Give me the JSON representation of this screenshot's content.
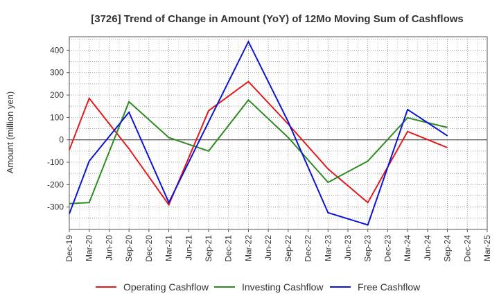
{
  "chart_data": {
    "type": "line",
    "title": "[3726]  Trend of Change in Amount (YoY) of 12Mo Moving Sum of Cashflows",
    "xlabel": "",
    "ylabel": "Amount (million yen)",
    "categories": [
      "Dec-19",
      "Mar-20",
      "Jun-20",
      "Sep-20",
      "Dec-20",
      "Mar-21",
      "Jun-21",
      "Sep-21",
      "Dec-21",
      "Mar-22",
      "Jun-22",
      "Sep-22",
      "Dec-22",
      "Mar-23",
      "Jun-23",
      "Sep-23",
      "Dec-23",
      "Mar-24",
      "Jun-24",
      "Sep-24",
      "Dec-24",
      "Mar-25"
    ],
    "ylim": [
      -400,
      460
    ],
    "yticks": [
      -300,
      -200,
      -100,
      0,
      100,
      200,
      300,
      400
    ],
    "grid": true,
    "legend_position": "bottom",
    "series": [
      {
        "name": "Operating Cashflow",
        "color": "#e31a1c",
        "values": [
          -45,
          185,
          null,
          -40,
          null,
          -290,
          null,
          130,
          null,
          260,
          null,
          70,
          null,
          -130,
          null,
          -280,
          null,
          37,
          null,
          -35,
          null,
          null
        ]
      },
      {
        "name": "Investing Cashflow",
        "color": "#2e8b22",
        "values": [
          -285,
          -280,
          null,
          170,
          null,
          10,
          null,
          -50,
          null,
          178,
          null,
          10,
          null,
          -190,
          null,
          -95,
          null,
          98,
          null,
          55,
          null,
          null
        ]
      },
      {
        "name": "Free Cashflow",
        "color": "#0a14d2",
        "values": [
          -330,
          -95,
          null,
          123,
          null,
          -280,
          null,
          80,
          null,
          438,
          null,
          80,
          null,
          -325,
          null,
          -380,
          null,
          135,
          null,
          18,
          null,
          null
        ]
      }
    ]
  }
}
